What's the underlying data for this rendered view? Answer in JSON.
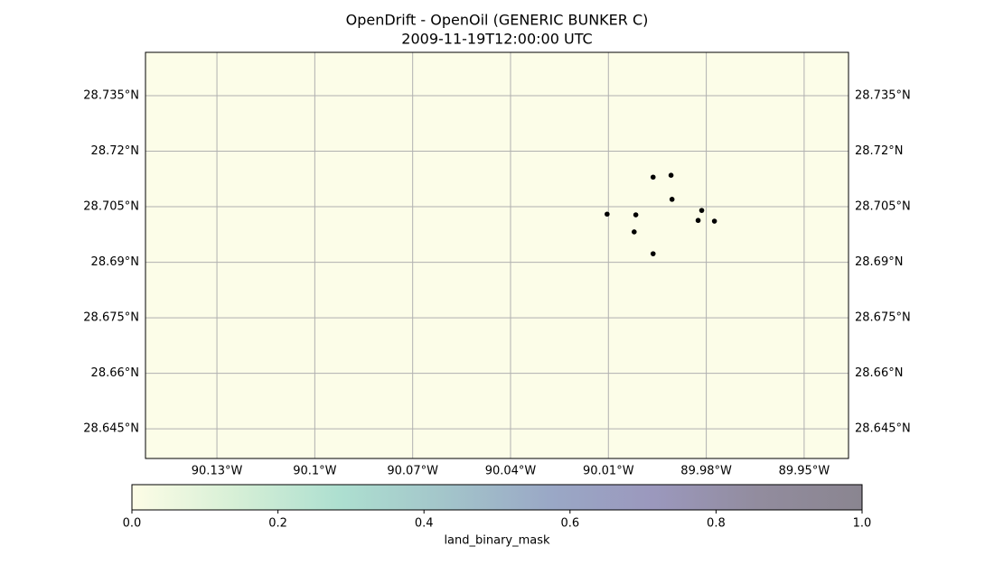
{
  "chart_data": {
    "type": "scatter",
    "title": "OpenDrift - OpenOil (GENERIC BUNKER C)",
    "subtitle": "2009-11-19T12:00:00 UTC",
    "x": [
      -89.9963,
      -89.9908,
      -89.9905,
      -89.9814,
      -89.9825,
      -89.9775,
      -90.0104,
      -90.0016,
      -90.0021,
      -89.9963
    ],
    "series": [
      {
        "color": "#000000",
        "values": [
          28.713,
          28.7135,
          28.707,
          28.704,
          28.7013,
          28.7011,
          28.703,
          28.7028,
          28.6982,
          28.6923
        ]
      }
    ],
    "xlim": [
      -90.1519,
      -89.9364
    ],
    "ylim": [
      28.637,
      28.7467
    ],
    "xticks": [
      {
        "value": -90.13,
        "label": "90.13°W"
      },
      {
        "value": -90.1,
        "label": "90.1°W"
      },
      {
        "value": -90.07,
        "label": "90.07°W"
      },
      {
        "value": -90.04,
        "label": "90.04°W"
      },
      {
        "value": -90.01,
        "label": "90.01°W"
      },
      {
        "value": -89.98,
        "label": "89.98°W"
      },
      {
        "value": -89.95,
        "label": "89.95°W"
      }
    ],
    "yticks": [
      {
        "value": 28.735,
        "label": "28.735°N"
      },
      {
        "value": 28.72,
        "label": "28.72°N"
      },
      {
        "value": 28.705,
        "label": "28.705°N"
      },
      {
        "value": 28.69,
        "label": "28.69°N"
      },
      {
        "value": 28.675,
        "label": "28.675°N"
      },
      {
        "value": 28.66,
        "label": "28.66°N"
      },
      {
        "value": 28.645,
        "label": "28.645°N"
      }
    ],
    "grid": true,
    "background": "#fcfde8",
    "colorbar": {
      "label": "land_binary_mask",
      "lim": [
        0,
        1
      ],
      "ticks": [
        {
          "value": 0,
          "label": "0.0"
        },
        0.2,
        0.4,
        0.6,
        0.8,
        {
          "value": 1,
          "label": "1.0"
        }
      ],
      "colors": [
        "#fdfde6",
        "#d6efd6",
        "#addfd0",
        "#a3c5ca",
        "#9aa8c6",
        "#9b98bd",
        "#928c9e",
        "#8a8590"
      ]
    }
  }
}
